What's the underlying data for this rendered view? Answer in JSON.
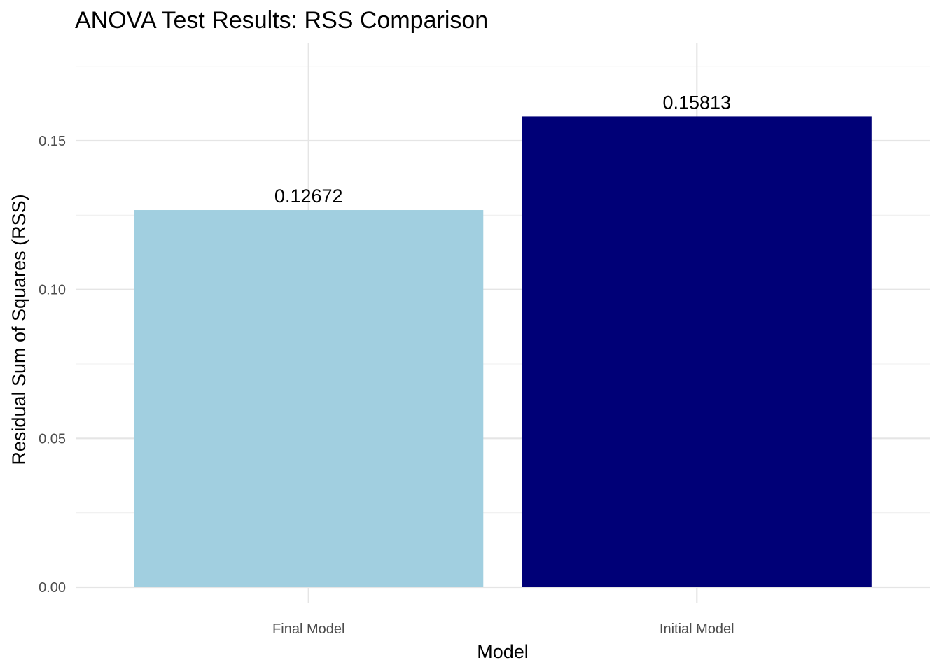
{
  "chart_data": {
    "type": "bar",
    "title": "ANOVA Test Results: RSS Comparison",
    "xlabel": "Model",
    "ylabel": "Residual Sum of Squares (RSS)",
    "categories": [
      "Final Model",
      "Initial Model"
    ],
    "values": [
      0.12672,
      0.15813
    ],
    "data_labels": [
      "0.12672",
      "0.15813"
    ],
    "bar_colors": [
      "#a1cfe0",
      "#000077"
    ],
    "yticks": [
      0.0,
      0.05,
      0.1,
      0.15
    ],
    "ytick_labels": [
      "0.00",
      "0.05",
      "0.10",
      "0.15"
    ],
    "ylim": [
      0,
      0.17813
    ],
    "grid": true,
    "legend": "none"
  }
}
